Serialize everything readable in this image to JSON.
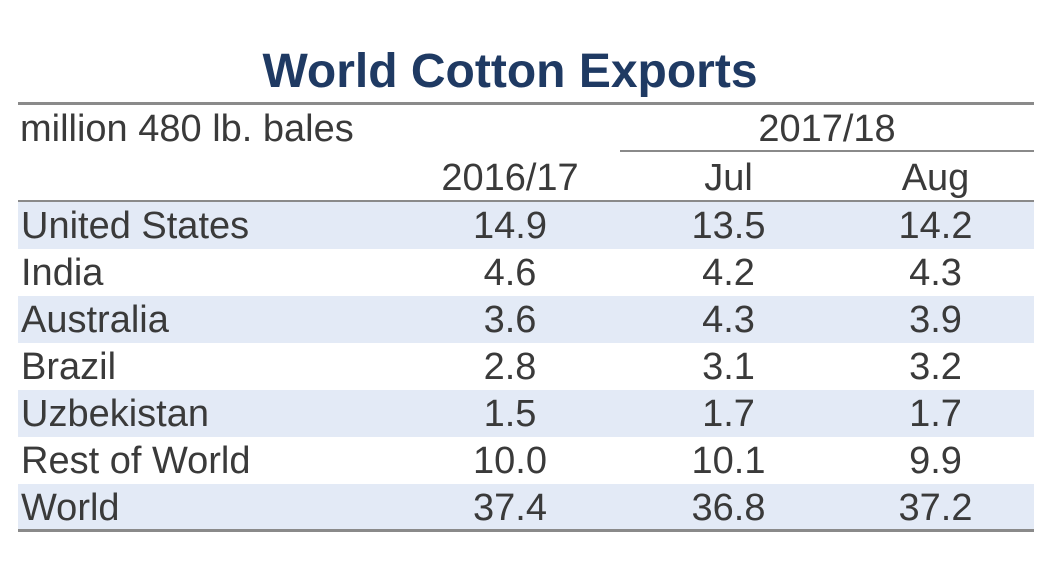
{
  "chart_data": {
    "type": "table",
    "title": "World Cotton Exports",
    "unit_label": "million 480 lb. bales",
    "group_header": "2017/18",
    "columns": [
      "2016/17",
      "Jul",
      "Aug"
    ],
    "rows": [
      {
        "name": "United States",
        "values": [
          "14.9",
          "13.5",
          "14.2"
        ]
      },
      {
        "name": "India",
        "values": [
          "4.6",
          "4.2",
          "4.3"
        ]
      },
      {
        "name": "Australia",
        "values": [
          "3.6",
          "4.3",
          "3.9"
        ]
      },
      {
        "name": "Brazil",
        "values": [
          "2.8",
          "3.1",
          "3.2"
        ]
      },
      {
        "name": "Uzbekistan",
        "values": [
          "1.5",
          "1.7",
          "1.7"
        ]
      },
      {
        "name": "Rest of World",
        "values": [
          "10.0",
          "10.1",
          "9.9"
        ]
      },
      {
        "name": "World",
        "values": [
          "37.4",
          "36.8",
          "37.2"
        ]
      }
    ],
    "colors": {
      "title": "#1f3a63",
      "text": "#3a3a3a",
      "row_shade": "#e3eaf6",
      "rule": "#8a8a8a"
    }
  }
}
